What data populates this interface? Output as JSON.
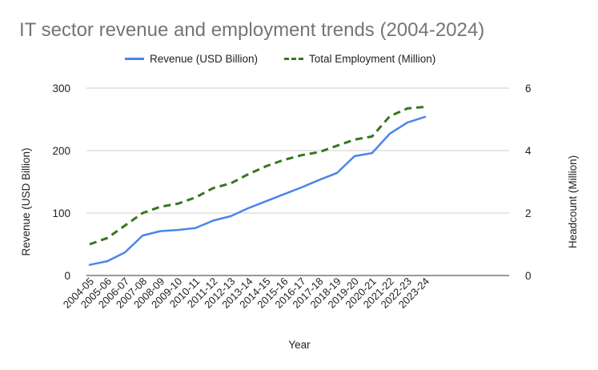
{
  "chart_data": {
    "type": "line",
    "title": "IT sector revenue and employment trends (2004-2024)",
    "xlabel": "Year",
    "ylabel": "Revenue (USD Billion)",
    "y2label": "Headcount (Million)",
    "ylim": [
      0,
      300
    ],
    "y2lim": [
      0,
      6
    ],
    "yticks": [
      "0",
      "100",
      "200",
      "300"
    ],
    "y2ticks": [
      "0",
      "2",
      "4",
      "6"
    ],
    "grid": true,
    "legend_position": "top",
    "categories": [
      "2004-05",
      "2005-06",
      "2006-07",
      "2007-08",
      "2008-09",
      "2009-10",
      "2010-11",
      "2011-12",
      "2012-13",
      "2013-14",
      "2014-15",
      "2015-16",
      "2016-17",
      "2017-18",
      "2018-19",
      "2019-20",
      "2020-21",
      "2021-22",
      "2022-23",
      "2023-24"
    ],
    "series": [
      {
        "name": "Revenue (USD Billion)",
        "axis": "left",
        "color": "#4a86e8",
        "style": "solid",
        "values": [
          17,
          23,
          37,
          64,
          71,
          73,
          76,
          88,
          95,
          108,
          119,
          130,
          141,
          153,
          164,
          191,
          196,
          227,
          245,
          254
        ]
      },
      {
        "name": "Total Employment (Million)",
        "axis": "right",
        "color": "#38761d",
        "style": "dashed",
        "values": [
          1.0,
          1.2,
          1.6,
          2.0,
          2.2,
          2.3,
          2.5,
          2.8,
          2.95,
          3.25,
          3.5,
          3.7,
          3.85,
          3.95,
          4.15,
          4.35,
          4.45,
          5.1,
          5.35,
          5.4
        ]
      }
    ]
  }
}
